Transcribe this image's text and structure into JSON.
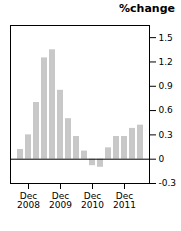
{
  "chart_data": {
    "type": "bar",
    "title": "%change",
    "categories": [
      null,
      "Dec\n2008",
      null,
      null,
      null,
      "Dec\n2009",
      null,
      null,
      null,
      "Dec\n2010",
      null,
      null,
      null,
      "Dec\n2011",
      null,
      null
    ],
    "values": [
      0.12,
      0.3,
      0.7,
      1.25,
      1.35,
      0.85,
      0.5,
      0.28,
      0.1,
      -0.08,
      -0.1,
      0.14,
      0.28,
      0.28,
      0.38,
      0.42
    ],
    "color": "#c8c8c8",
    "ylim": [
      -0.3,
      1.65
    ],
    "yticks": [
      -0.3,
      0,
      0.3,
      0.6,
      0.9,
      1.2,
      1.5
    ],
    "grid": false
  }
}
